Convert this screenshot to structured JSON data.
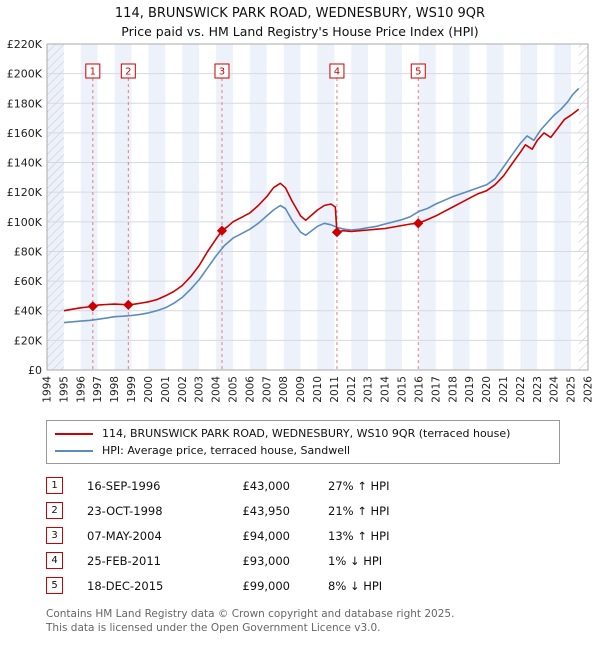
{
  "title": "114, BRUNSWICK PARK ROAD, WEDNESBURY, WS10 9QR",
  "subtitle": "Price paid vs. HM Land Registry's House Price Index (HPI)",
  "chart_data": {
    "type": "line",
    "title": "114, BRUNSWICK PARK ROAD, WEDNESBURY, WS10 9QR",
    "subtitle": "Price paid vs. HM Land Registry's House Price Index (HPI)",
    "x_range": [
      1994,
      2026
    ],
    "y_range": [
      0,
      220000
    ],
    "y_tick_step": 20000,
    "y_tick_labels": [
      "£0",
      "£20K",
      "£40K",
      "£60K",
      "£80K",
      "£100K",
      "£120K",
      "£140K",
      "£160K",
      "£180K",
      "£200K",
      "£220K"
    ],
    "x_ticks": [
      1994,
      1995,
      1996,
      1997,
      1998,
      1999,
      2000,
      2001,
      2002,
      2003,
      2004,
      2005,
      2006,
      2007,
      2008,
      2009,
      2010,
      2011,
      2012,
      2013,
      2014,
      2015,
      2016,
      2017,
      2018,
      2019,
      2020,
      2021,
      2022,
      2023,
      2024,
      2025,
      2026
    ],
    "grid": "horizontal",
    "legend_position": "below",
    "band_color": "#edf2fa",
    "sale_line_color": "#e08080",
    "accent_red": "#cc0000",
    "series": [
      {
        "name": "114, BRUNSWICK PARK ROAD, WEDNESBURY, WS10 9QR (terraced house)",
        "color": "#cc0000",
        "x": [
          1995.0,
          1995.5,
          1996.0,
          1996.4,
          1996.71,
          1997.0,
          1997.5,
          1998.0,
          1998.5,
          1998.81,
          1999.2,
          1999.6,
          2000.0,
          2000.5,
          2001.0,
          2001.5,
          2002.0,
          2002.5,
          2003.0,
          2003.5,
          2004.0,
          2004.35,
          2004.7,
          2005.0,
          2005.5,
          2006.0,
          2006.5,
          2007.0,
          2007.4,
          2007.8,
          2008.1,
          2008.5,
          2009.0,
          2009.3,
          2009.6,
          2010.0,
          2010.4,
          2010.8,
          2011.05,
          2011.15,
          2011.5,
          2012.0,
          2012.5,
          2013.0,
          2013.5,
          2014.0,
          2014.5,
          2015.0,
          2015.5,
          2015.96,
          2016.5,
          2017.0,
          2017.5,
          2018.0,
          2018.5,
          2019.0,
          2019.5,
          2020.0,
          2020.5,
          2021.0,
          2021.5,
          2022.0,
          2022.3,
          2022.7,
          2023.0,
          2023.4,
          2023.8,
          2024.2,
          2024.6,
          2025.0,
          2025.45
        ],
        "y": [
          40000,
          41000,
          42000,
          42500,
          43000,
          43800,
          44200,
          44500,
          44200,
          43950,
          44500,
          45200,
          46000,
          47500,
          50000,
          53000,
          57000,
          63000,
          70500,
          80000,
          88500,
          94000,
          97000,
          100000,
          103000,
          106000,
          111000,
          117000,
          123000,
          126000,
          123000,
          114000,
          104000,
          101000,
          104000,
          108000,
          111000,
          112000,
          110000,
          93000,
          94000,
          93500,
          94000,
          94500,
          95000,
          95500,
          96500,
          97500,
          98500,
          99000,
          101500,
          104000,
          107000,
          110000,
          113000,
          116000,
          119000,
          121000,
          125000,
          131000,
          139000,
          147000,
          152000,
          149000,
          155000,
          160000,
          157000,
          163000,
          169000,
          172000,
          176000
        ]
      },
      {
        "name": "HPI: Average price, terraced house, Sandwell",
        "color": "#5b8cbe",
        "x": [
          1995.0,
          1995.5,
          1996.0,
          1996.5,
          1997.0,
          1997.5,
          1998.0,
          1998.5,
          1999.0,
          1999.5,
          2000.0,
          2000.5,
          2001.0,
          2001.5,
          2002.0,
          2002.5,
          2003.0,
          2003.5,
          2004.0,
          2004.5,
          2005.0,
          2005.5,
          2006.0,
          2006.5,
          2007.0,
          2007.4,
          2007.8,
          2008.1,
          2008.5,
          2009.0,
          2009.3,
          2009.6,
          2010.0,
          2010.4,
          2010.8,
          2011.2,
          2011.6,
          2012.0,
          2012.5,
          2013.0,
          2013.5,
          2014.0,
          2014.5,
          2015.0,
          2015.5,
          2016.0,
          2016.5,
          2017.0,
          2017.5,
          2018.0,
          2018.5,
          2019.0,
          2019.5,
          2020.0,
          2020.5,
          2021.0,
          2021.5,
          2022.0,
          2022.4,
          2022.8,
          2023.2,
          2023.6,
          2024.0,
          2024.4,
          2024.8,
          2025.1,
          2025.45
        ],
        "y": [
          32000,
          32500,
          33000,
          33500,
          34200,
          35000,
          36000,
          36300,
          36800,
          37500,
          38500,
          40000,
          42000,
          45000,
          49000,
          54500,
          61000,
          69000,
          77000,
          84000,
          89000,
          92000,
          95000,
          99000,
          104000,
          108000,
          111000,
          109000,
          101000,
          93000,
          91000,
          93500,
          97000,
          99000,
          98000,
          96000,
          95000,
          94500,
          95000,
          96000,
          97000,
          98500,
          100000,
          101500,
          103500,
          107000,
          109000,
          112000,
          114500,
          117000,
          119000,
          121000,
          123000,
          125000,
          129000,
          137000,
          145000,
          153000,
          158000,
          155000,
          162000,
          167000,
          172000,
          176000,
          181000,
          186000,
          190000
        ]
      }
    ],
    "sales": [
      {
        "n": 1,
        "x": 1996.71,
        "price": 43000,
        "date": "16-SEP-1996",
        "price_label": "£43,000",
        "hpi_delta": "27% ↑ HPI"
      },
      {
        "n": 2,
        "x": 1998.81,
        "price": 43950,
        "date": "23-OCT-1998",
        "price_label": "£43,950",
        "hpi_delta": "21% ↑ HPI"
      },
      {
        "n": 3,
        "x": 2004.35,
        "price": 94000,
        "date": "07-MAY-2004",
        "price_label": "£94,000",
        "hpi_delta": "13% ↑ HPI"
      },
      {
        "n": 4,
        "x": 2011.15,
        "price": 93000,
        "date": "25-FEB-2011",
        "price_label": "£93,000",
        "hpi_delta": "1% ↓ HPI"
      },
      {
        "n": 5,
        "x": 2015.96,
        "price": 99000,
        "date": "18-DEC-2015",
        "price_label": "£99,000",
        "hpi_delta": "8% ↓ HPI"
      }
    ]
  },
  "footer": {
    "line1": "Contains HM Land Registry data © Crown copyright and database right 2025.",
    "line2": "This data is licensed under the Open Government Licence v3.0."
  }
}
